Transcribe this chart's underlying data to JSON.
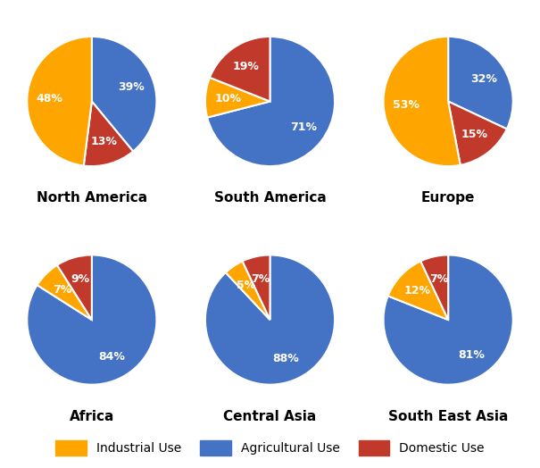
{
  "regions": [
    "North America",
    "South America",
    "Europe",
    "Africa",
    "Central Asia",
    "South East Asia"
  ],
  "data": {
    "North America": {
      "Agricultural Use": 39,
      "Domestic Use": 13,
      "Industrial Use": 48
    },
    "South America": {
      "Agricultural Use": 71,
      "Industrial Use": 10,
      "Domestic Use": 19
    },
    "Europe": {
      "Agricultural Use": 32,
      "Domestic Use": 15,
      "Industrial Use": 53
    },
    "Africa": {
      "Agricultural Use": 84,
      "Industrial Use": 7,
      "Domestic Use": 9
    },
    "Central Asia": {
      "Agricultural Use": 88,
      "Industrial Use": 5,
      "Domestic Use": 7
    },
    "South East Asia": {
      "Agricultural Use": 81,
      "Industrial Use": 12,
      "Domestic Use": 7
    }
  },
  "slice_orders": {
    "North America": [
      "Agricultural Use",
      "Domestic Use",
      "Industrial Use"
    ],
    "South America": [
      "Agricultural Use",
      "Industrial Use",
      "Domestic Use"
    ],
    "Europe": [
      "Agricultural Use",
      "Domestic Use",
      "Industrial Use"
    ],
    "Africa": [
      "Agricultural Use",
      "Industrial Use",
      "Domestic Use"
    ],
    "Central Asia": [
      "Agricultural Use",
      "Industrial Use",
      "Domestic Use"
    ],
    "South East Asia": [
      "Agricultural Use",
      "Industrial Use",
      "Domestic Use"
    ]
  },
  "startangles": {
    "North America": 90,
    "South America": 90,
    "Europe": 90,
    "Africa": 90,
    "Central Asia": 90,
    "South East Asia": 90
  },
  "colors": {
    "Industrial Use": "#FFA500",
    "Agricultural Use": "#4472C4",
    "Domestic Use": "#C0392B"
  },
  "category_order": [
    "Industrial Use",
    "Agricultural Use",
    "Domestic Use"
  ],
  "background_color": "#FFFFFF",
  "label_fontsize": 9,
  "title_fontsize": 11,
  "legend_fontsize": 10
}
